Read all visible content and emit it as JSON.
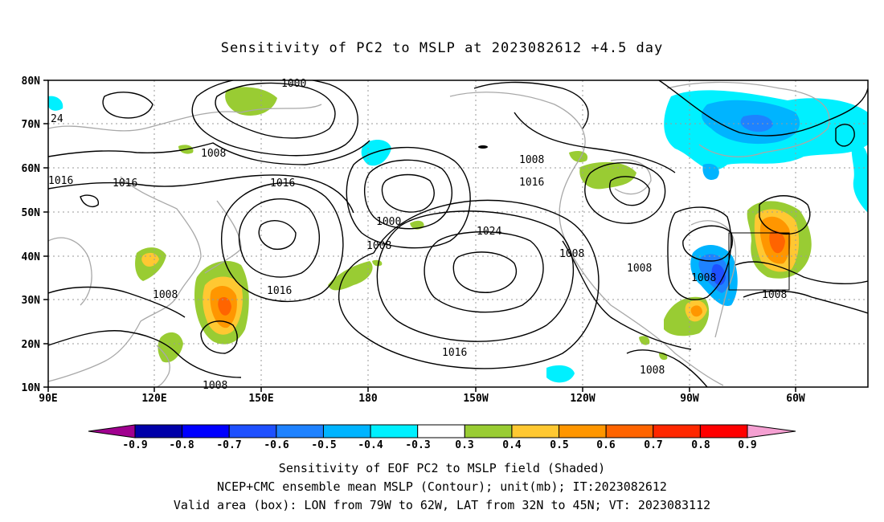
{
  "title": "Sensitivity of PC2 to MSLP at 2023082612 +4.5 day",
  "map": {
    "lat_labels": [
      "80N",
      "70N",
      "60N",
      "50N",
      "40N",
      "30N",
      "20N",
      "10N"
    ],
    "lon_labels": [
      "90E",
      "120E",
      "150E",
      "180",
      "150W",
      "120W",
      "90W",
      "60W"
    ],
    "contour_labels": [
      "1000",
      "24",
      "1008",
      "1016",
      "1016",
      "1016",
      "1008",
      "1016",
      "1000",
      "1008",
      "1024",
      "1016",
      "1008",
      "1008",
      "1008",
      "1008",
      "1016",
      "1008",
      "1008",
      "1008"
    ]
  },
  "colorbar": {
    "labels": [
      "-0.9",
      "-0.8",
      "-0.7",
      "-0.6",
      "-0.5",
      "-0.4",
      "-0.3",
      "0.3",
      "0.4",
      "0.5",
      "0.6",
      "0.7",
      "0.8",
      "0.9"
    ],
    "colors": [
      "#a0008f",
      "#0000a8",
      "#0000ff",
      "#1e50ff",
      "#1e82ff",
      "#00b4ff",
      "#00f0ff",
      "#ffffff",
      "#99cc33",
      "#ffc832",
      "#ff9600",
      "#ff6400",
      "#ff2800",
      "#ff0000",
      "#f5a0d2"
    ]
  },
  "captions": {
    "line1": "Sensitivity of EOF PC2 to MSLP field (Shaded)",
    "line2": "NCEP+CMC ensemble mean MSLP (Contour); unit(mb); IT:2023082612",
    "line3": "Valid area (box): LON from 79W to 62W, LAT from 32N to 45N; VT: 2023083112"
  }
}
